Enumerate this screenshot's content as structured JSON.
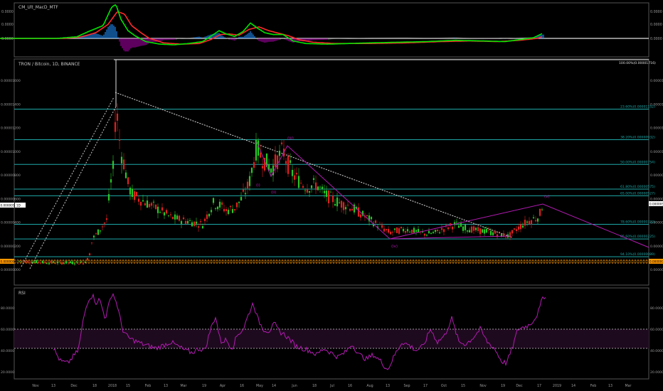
{
  "macd_panel": {
    "title": "CM_Ult_MacD_MTF",
    "scale_labels": [
      "0.0000",
      "0.0000",
      "0.0000"
    ],
    "colors": {
      "macd": "#00e600",
      "signal": "#ff2a2a",
      "hist_pos": "#1f8fff",
      "hist_neg": "#aa00aa",
      "hist_neutral": "#888888"
    },
    "macd": [
      [
        0,
        0
      ],
      [
        80,
        0
      ],
      [
        108,
        0.25
      ],
      [
        125,
        1.1
      ],
      [
        145,
        2.0
      ],
      [
        157,
        4.9
      ],
      [
        163,
        5.3
      ],
      [
        170,
        3.0
      ],
      [
        180,
        1.2
      ],
      [
        190,
        0.4
      ],
      [
        205,
        -0.5
      ],
      [
        225,
        -0.9
      ],
      [
        245,
        -1.0
      ],
      [
        265,
        -0.8
      ],
      [
        285,
        -0.5
      ],
      [
        296,
        0.3
      ],
      [
        308,
        1.2
      ],
      [
        318,
        0.7
      ],
      [
        330,
        0.3
      ],
      [
        342,
        1.1
      ],
      [
        352,
        2.4
      ],
      [
        362,
        1.6
      ],
      [
        372,
        0.9
      ],
      [
        384,
        0.6
      ],
      [
        398,
        0.6
      ],
      [
        412,
        -0.4
      ],
      [
        430,
        -0.8
      ],
      [
        460,
        -0.9
      ],
      [
        490,
        -0.8
      ],
      [
        520,
        -0.7
      ],
      [
        560,
        -0.6
      ],
      [
        600,
        -0.5
      ],
      [
        640,
        -0.3
      ],
      [
        680,
        -0.4
      ],
      [
        710,
        -0.5
      ],
      [
        730,
        -0.2
      ],
      [
        750,
        0.1
      ],
      [
        763,
        0.8
      ]
    ],
    "signal": [
      [
        0,
        0
      ],
      [
        90,
        0
      ],
      [
        115,
        0.25
      ],
      [
        135,
        0.9
      ],
      [
        152,
        2.2
      ],
      [
        165,
        4.2
      ],
      [
        175,
        3.8
      ],
      [
        185,
        2.0
      ],
      [
        198,
        0.9
      ],
      [
        210,
        0.0
      ],
      [
        230,
        -0.7
      ],
      [
        255,
        -0.9
      ],
      [
        280,
        -0.8
      ],
      [
        296,
        -0.2
      ],
      [
        310,
        0.6
      ],
      [
        322,
        0.7
      ],
      [
        336,
        0.5
      ],
      [
        350,
        1.4
      ],
      [
        364,
        1.8
      ],
      [
        378,
        1.2
      ],
      [
        392,
        0.8
      ],
      [
        406,
        0.4
      ],
      [
        420,
        -0.2
      ],
      [
        440,
        -0.6
      ],
      [
        470,
        -0.8
      ],
      [
        520,
        -0.8
      ],
      [
        570,
        -0.7
      ],
      [
        620,
        -0.5
      ],
      [
        660,
        -0.4
      ],
      [
        700,
        -0.5
      ],
      [
        730,
        -0.3
      ],
      [
        755,
        0.0
      ],
      [
        763,
        0.3
      ]
    ]
  },
  "price_panel": {
    "title": "TRON / Bitcoin, 1D, BINANCE",
    "y_ticks": [
      "0.00001600",
      "0.00001400",
      "0.00001200",
      "0.00001000",
      "0.00000800",
      "0.00000600",
      "0.00000400",
      "0.00000200",
      "0.00000000"
    ],
    "last_price_label": "0.00000559",
    "last_price_small": "0.00000559",
    "orange_price_label": "0.00000000",
    "left_price_label": "0.00000531",
    "left_tag": "1D",
    "fib_levels": [
      {
        "label": "100.00%(0.00001716)",
        "ratio": 0
      },
      {
        "label": "23.60%(0.00001152)",
        "ratio": 0.236
      },
      {
        "label": "38.20%(0.00000932)",
        "ratio": 0.382
      },
      {
        "label": "50.00%(0.00000754)",
        "ratio": 0.5
      },
      {
        "label": "61.80%(0.00000575)",
        "ratio": 0.618
      },
      {
        "label": "65.00%(0.00000527)",
        "ratio": 0.65
      },
      {
        "label": "78.60%(0.00000322)",
        "ratio": 0.786
      },
      {
        "label": "85.60%(0.00000225)",
        "ratio": 0.856
      },
      {
        "label": "94.10%(0.00000089)",
        "ratio": 0.941
      }
    ],
    "wave_labels": [
      "(i)",
      "(ii)",
      "(iii)",
      "(iv)",
      "(v)"
    ],
    "colors": {
      "up": "#28c828",
      "down": "#e02020",
      "fib": "#1ea8a8",
      "wave": "#b21bb2",
      "trend": "#c8c8c8",
      "orange": "#ff9800"
    },
    "price_curve": [
      [
        27,
        7e-07
      ],
      [
        45,
        6.6e-07
      ],
      [
        60,
        6e-07
      ],
      [
        80,
        5.8e-07
      ],
      [
        100,
        5.6e-07
      ],
      [
        118,
        5.8e-07
      ],
      [
        125,
        1e-06
      ],
      [
        130,
        2.6e-06
      ],
      [
        136,
        3e-06
      ],
      [
        142,
        3.5e-06
      ],
      [
        150,
        4.2e-06
      ],
      [
        155,
        7e-06
      ],
      [
        160,
        8.8e-06
      ],
      [
        163,
        1.45e-05
      ],
      [
        166,
        1.2e-05
      ],
      [
        170,
        1e-05
      ],
      [
        175,
        8.8e-06
      ],
      [
        180,
        7.2e-06
      ],
      [
        185,
        6.4e-06
      ],
      [
        195,
        6e-06
      ],
      [
        210,
        5.5e-06
      ],
      [
        225,
        5e-06
      ],
      [
        240,
        4.4e-06
      ],
      [
        255,
        4.2e-06
      ],
      [
        270,
        4e-06
      ],
      [
        285,
        3.8e-06
      ],
      [
        292,
        4.7e-06
      ],
      [
        300,
        5.6e-06
      ],
      [
        310,
        5.4e-06
      ],
      [
        318,
        5e-06
      ],
      [
        330,
        5.2e-06
      ],
      [
        340,
        6e-06
      ],
      [
        350,
        7.2e-06
      ],
      [
        356,
        9e-06
      ],
      [
        361,
        1.04e-05
      ],
      [
        367,
        9.5e-06
      ],
      [
        375,
        9e-06
      ],
      [
        382,
        8.5e-06
      ],
      [
        390,
        9.3e-06
      ],
      [
        398,
        1.01e-05
      ],
      [
        404,
        9e-06
      ],
      [
        412,
        8e-06
      ],
      [
        422,
        7.4e-06
      ],
      [
        432,
        7e-06
      ],
      [
        445,
        7.2e-06
      ],
      [
        455,
        6.4e-06
      ],
      [
        466,
        6e-06
      ],
      [
        478,
        5.6e-06
      ],
      [
        490,
        5.4e-06
      ],
      [
        505,
        4.8e-06
      ],
      [
        520,
        4.2e-06
      ],
      [
        535,
        3.6e-06
      ],
      [
        548,
        3.1e-06
      ],
      [
        560,
        3.3e-06
      ],
      [
        572,
        3.4e-06
      ],
      [
        585,
        3.2e-06
      ],
      [
        598,
        3e-06
      ],
      [
        612,
        3.1e-06
      ],
      [
        626,
        3.5e-06
      ],
      [
        640,
        3.8e-06
      ],
      [
        655,
        3.5e-06
      ],
      [
        670,
        3.3e-06
      ],
      [
        685,
        3.2e-06
      ],
      [
        700,
        3e-06
      ],
      [
        715,
        2.8e-06
      ],
      [
        728,
        3.5e-06
      ],
      [
        740,
        4e-06
      ],
      [
        752,
        4.3e-06
      ],
      [
        758,
        4.5e-06
      ],
      [
        763,
        5.59e-06
      ]
    ]
  },
  "rsi_panel": {
    "title": "RSI",
    "y_ticks": [
      "80.0000",
      "60.0000",
      "40.0000",
      "20.0000"
    ],
    "colors": {
      "line": "#b21bb2",
      "band": "#1e0a1e",
      "upper": "#c8c8c8",
      "lower": "#c8c8c8"
    },
    "rsi": [
      [
        75,
        42
      ],
      [
        85,
        30
      ],
      [
        95,
        28
      ],
      [
        110,
        40
      ],
      [
        118,
        72
      ],
      [
        124,
        88
      ],
      [
        130,
        92
      ],
      [
        135,
        85
      ],
      [
        140,
        88
      ],
      [
        148,
        70
      ],
      [
        158,
        95
      ],
      [
        165,
        82
      ],
      [
        172,
        60
      ],
      [
        180,
        52
      ],
      [
        190,
        49
      ],
      [
        200,
        46
      ],
      [
        210,
        44
      ],
      [
        220,
        42
      ],
      [
        230,
        45
      ],
      [
        240,
        48
      ],
      [
        250,
        44
      ],
      [
        260,
        40
      ],
      [
        270,
        38
      ],
      [
        280,
        42
      ],
      [
        288,
        40
      ],
      [
        296,
        60
      ],
      [
        303,
        72
      ],
      [
        310,
        48
      ],
      [
        318,
        50
      ],
      [
        326,
        42
      ],
      [
        334,
        55
      ],
      [
        342,
        60
      ],
      [
        350,
        75
      ],
      [
        356,
        85
      ],
      [
        362,
        70
      ],
      [
        370,
        60
      ],
      [
        378,
        58
      ],
      [
        386,
        65
      ],
      [
        392,
        58
      ],
      [
        400,
        55
      ],
      [
        408,
        50
      ],
      [
        416,
        44
      ],
      [
        425,
        42
      ],
      [
        435,
        40
      ],
      [
        445,
        36
      ],
      [
        455,
        42
      ],
      [
        465,
        38
      ],
      [
        475,
        34
      ],
      [
        485,
        38
      ],
      [
        495,
        46
      ],
      [
        505,
        36
      ],
      [
        515,
        32
      ],
      [
        525,
        36
      ],
      [
        535,
        30
      ],
      [
        545,
        22
      ],
      [
        555,
        36
      ],
      [
        565,
        48
      ],
      [
        575,
        45
      ],
      [
        585,
        40
      ],
      [
        595,
        44
      ],
      [
        605,
        60
      ],
      [
        615,
        48
      ],
      [
        625,
        54
      ],
      [
        635,
        70
      ],
      [
        645,
        48
      ],
      [
        655,
        46
      ],
      [
        665,
        52
      ],
      [
        675,
        60
      ],
      [
        685,
        48
      ],
      [
        695,
        42
      ],
      [
        705,
        30
      ],
      [
        712,
        28
      ],
      [
        720,
        42
      ],
      [
        728,
        60
      ],
      [
        736,
        62
      ],
      [
        744,
        64
      ],
      [
        752,
        70
      ],
      [
        758,
        78
      ],
      [
        763,
        90
      ],
      [
        768,
        92
      ]
    ],
    "upper_level": 60,
    "lower_level": 42
  },
  "x_axis": {
    "labels": [
      [
        "Nov",
        50
      ],
      [
        "13",
        75
      ],
      [
        "Dec",
        104
      ],
      [
        "18",
        133
      ],
      [
        "2018",
        158
      ],
      [
        "15",
        180
      ],
      [
        "Feb",
        208
      ],
      [
        "13",
        233
      ],
      [
        "Mar",
        258
      ],
      [
        "19",
        287
      ],
      [
        "Apr",
        313
      ],
      [
        "16",
        340
      ],
      [
        "May",
        365
      ],
      [
        "14",
        385
      ],
      [
        "Jun",
        414
      ],
      [
        "18",
        442
      ],
      [
        "Jul",
        467
      ],
      [
        "16",
        492
      ],
      [
        "Aug",
        520
      ],
      [
        "13",
        545
      ],
      [
        "Sep",
        572
      ],
      [
        "17",
        598
      ],
      [
        "Oct",
        624
      ],
      [
        "15",
        651
      ],
      [
        "Nov",
        679
      ],
      [
        "19",
        707
      ],
      [
        "Dec",
        730
      ],
      [
        "17",
        758
      ],
      [
        "2019",
        783
      ],
      [
        "14",
        806
      ],
      [
        "Feb",
        834
      ],
      [
        "13",
        858
      ],
      [
        "Mar",
        883
      ]
    ]
  }
}
